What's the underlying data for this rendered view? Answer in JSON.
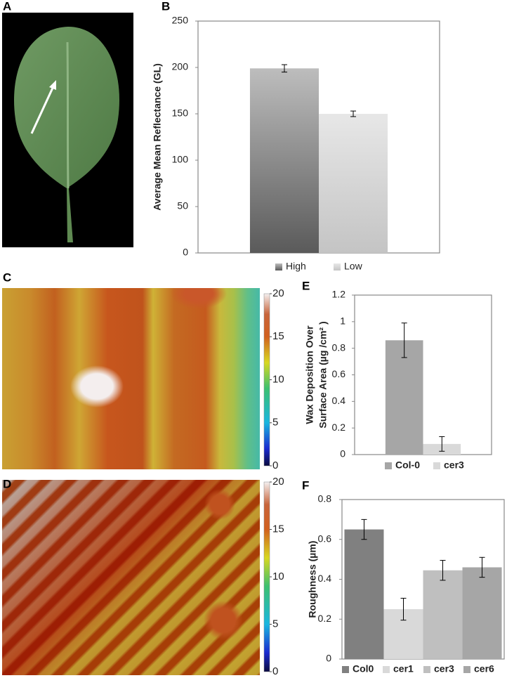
{
  "photo_panel": "A",
  "chart_data": [
    {
      "type": "bar",
      "panel": "B",
      "ylabel": [
        "Average Mean Reflectance (GL)"
      ],
      "categories": [
        null
      ],
      "series": [
        {
          "name": "High",
          "color": "#5a5a5a",
          "values": [
            199
          ],
          "errors": [
            4
          ]
        },
        {
          "name": "Low",
          "color": "#c4c4c4",
          "values": [
            150
          ],
          "errors": [
            3
          ]
        }
      ],
      "gradient": true,
      "ylim": [
        0,
        250
      ],
      "yticks": [
        0,
        50,
        100,
        150,
        200,
        250
      ]
    },
    {
      "type": "colorbar",
      "panel": "C",
      "ylim": [
        0,
        20
      ],
      "yticks": [
        0,
        5,
        10,
        15,
        20
      ]
    },
    {
      "type": "bar",
      "panel": "E",
      "ylabel": [
        "Wax Deposition Over",
        "Surface Area (µg /cm² )"
      ],
      "categories": [
        null
      ],
      "series": [
        {
          "name": "Col-0",
          "color": "#a6a6a6",
          "values": [
            0.86
          ],
          "errors": [
            0.13
          ]
        },
        {
          "name": "cer3",
          "color": "#d9d9d9",
          "values": [
            0.08
          ],
          "errors": [
            0.055
          ]
        }
      ],
      "ylim": [
        0,
        1.2
      ],
      "yticks": [
        0,
        0.2,
        0.4,
        0.6,
        0.8,
        1,
        1.2
      ]
    },
    {
      "type": "colorbar",
      "panel": "D",
      "ylim": [
        0,
        20
      ],
      "yticks": [
        0,
        5,
        10,
        15,
        20
      ]
    },
    {
      "type": "bar",
      "panel": "F",
      "ylabel": [
        "Roughness (µm)"
      ],
      "categories": [
        null
      ],
      "series": [
        {
          "name": "Col0",
          "color": "#808080",
          "values": [
            0.65
          ],
          "errors": [
            0.05
          ]
        },
        {
          "name": "cer1",
          "color": "#d9d9d9",
          "values": [
            0.25
          ],
          "errors": [
            0.055
          ]
        },
        {
          "name": "cer3",
          "color": "#bfbfbf",
          "values": [
            0.445
          ],
          "errors": [
            0.05
          ]
        },
        {
          "name": "cer6",
          "color": "#a6a6a6",
          "values": [
            0.46
          ],
          "errors": [
            0.05
          ]
        }
      ],
      "ylim": [
        0,
        0.8
      ],
      "yticks": [
        0,
        0.2,
        0.4,
        0.6,
        0.8
      ]
    }
  ]
}
